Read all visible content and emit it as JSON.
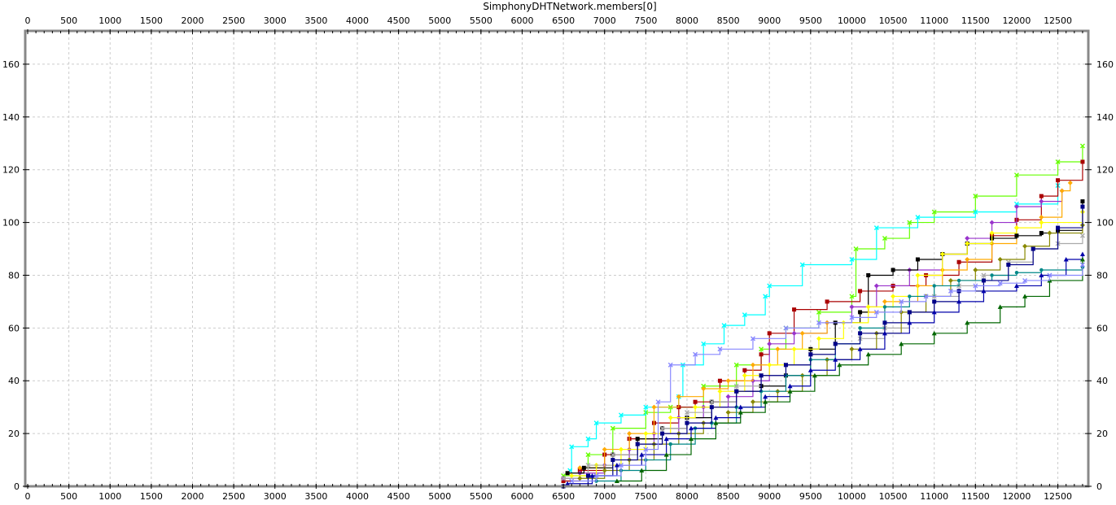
{
  "chart_data": {
    "type": "line",
    "title": "SimphonyDHTNetwork.members[0]",
    "xlabel": "",
    "ylabel": "",
    "xlim": [
      0,
      12850
    ],
    "ylim": [
      0,
      172
    ],
    "x_ticks": [
      0,
      500,
      1000,
      1500,
      2000,
      2500,
      3000,
      3500,
      4000,
      4500,
      5000,
      5500,
      6000,
      6500,
      7000,
      7500,
      8000,
      8500,
      9000,
      9500,
      10000,
      10500,
      11000,
      11500,
      12000,
      12500
    ],
    "y_ticks": [
      0,
      20,
      40,
      60,
      80,
      100,
      120,
      140,
      160
    ],
    "grid": true,
    "legend": "none",
    "series": [
      {
        "color": "#66ff00",
        "marker": "x",
        "points": [
          [
            6500,
            4
          ],
          [
            6800,
            12
          ],
          [
            7100,
            22
          ],
          [
            7500,
            28
          ],
          [
            7800,
            30
          ],
          [
            8200,
            38
          ],
          [
            8600,
            46
          ],
          [
            8900,
            52
          ],
          [
            9200,
            60
          ],
          [
            9600,
            66
          ],
          [
            10000,
            72
          ],
          [
            10050,
            90
          ],
          [
            10400,
            94
          ],
          [
            10700,
            100
          ],
          [
            11000,
            104
          ],
          [
            11500,
            110
          ],
          [
            12000,
            118
          ],
          [
            12500,
            123
          ],
          [
            12800,
            129
          ]
        ]
      },
      {
        "color": "#00ffff",
        "marker": "x",
        "points": [
          [
            6580,
            6
          ],
          [
            6600,
            15
          ],
          [
            6800,
            18
          ],
          [
            6900,
            24
          ],
          [
            7200,
            27
          ],
          [
            7500,
            30
          ],
          [
            7900,
            34
          ],
          [
            7950,
            46
          ],
          [
            8200,
            54
          ],
          [
            8450,
            61
          ],
          [
            8700,
            65
          ],
          [
            8950,
            72
          ],
          [
            9000,
            76
          ],
          [
            9400,
            84
          ],
          [
            10000,
            86
          ],
          [
            10300,
            98
          ],
          [
            10800,
            102
          ],
          [
            11500,
            104
          ],
          [
            12000,
            107
          ],
          [
            12500,
            114
          ]
        ]
      },
      {
        "color": "#aa0000",
        "marker": "s",
        "points": [
          [
            6500,
            2
          ],
          [
            6700,
            6
          ],
          [
            7000,
            12
          ],
          [
            7300,
            18
          ],
          [
            7600,
            24
          ],
          [
            7900,
            30
          ],
          [
            8100,
            32
          ],
          [
            8400,
            40
          ],
          [
            8700,
            44
          ],
          [
            8900,
            50
          ],
          [
            9000,
            58
          ],
          [
            9300,
            67
          ],
          [
            9700,
            70
          ],
          [
            10100,
            74
          ],
          [
            10500,
            76
          ],
          [
            10900,
            80
          ],
          [
            11300,
            85
          ],
          [
            11700,
            95
          ],
          [
            12000,
            101
          ],
          [
            12300,
            110
          ],
          [
            12500,
            116
          ],
          [
            12800,
            123
          ]
        ]
      },
      {
        "color": "#9933cc",
        "marker": "D",
        "points": [
          [
            6500,
            3
          ],
          [
            6700,
            5
          ],
          [
            7000,
            8
          ],
          [
            7300,
            14
          ],
          [
            7600,
            20
          ],
          [
            7900,
            26
          ],
          [
            8200,
            30
          ],
          [
            8500,
            34
          ],
          [
            8800,
            40
          ],
          [
            9000,
            54
          ],
          [
            9300,
            58
          ],
          [
            9700,
            62
          ],
          [
            10000,
            68
          ],
          [
            10300,
            76
          ],
          [
            10700,
            82
          ],
          [
            11100,
            88
          ],
          [
            11400,
            94
          ],
          [
            11700,
            100
          ],
          [
            12000,
            106
          ],
          [
            12300,
            108
          ],
          [
            12550,
            112
          ]
        ]
      },
      {
        "color": "#ffaa00",
        "marker": "D",
        "points": [
          [
            6700,
            7
          ],
          [
            7000,
            14
          ],
          [
            7300,
            20
          ],
          [
            7600,
            30
          ],
          [
            7900,
            34
          ],
          [
            8200,
            37
          ],
          [
            8500,
            40
          ],
          [
            8800,
            46
          ],
          [
            9100,
            52
          ],
          [
            9400,
            58
          ],
          [
            9700,
            62
          ],
          [
            10100,
            66
          ],
          [
            10400,
            70
          ],
          [
            10800,
            76
          ],
          [
            11100,
            82
          ],
          [
            11400,
            86
          ],
          [
            11700,
            92
          ],
          [
            12000,
            98
          ],
          [
            12300,
            102
          ],
          [
            12550,
            112
          ],
          [
            12650,
            115
          ]
        ]
      },
      {
        "color": "#000000",
        "marker": "s",
        "points": [
          [
            6550,
            5
          ],
          [
            6750,
            7
          ],
          [
            7100,
            12
          ],
          [
            7400,
            18
          ],
          [
            7700,
            22
          ],
          [
            8000,
            26
          ],
          [
            8300,
            32
          ],
          [
            8600,
            36
          ],
          [
            8900,
            38
          ],
          [
            9200,
            42
          ],
          [
            9500,
            52
          ],
          [
            9800,
            62
          ],
          [
            10100,
            66
          ],
          [
            10200,
            80
          ],
          [
            10500,
            82
          ],
          [
            10800,
            86
          ],
          [
            11100,
            88
          ],
          [
            11400,
            92
          ],
          [
            11700,
            94
          ],
          [
            12000,
            95
          ],
          [
            12300,
            96
          ],
          [
            12500,
            97
          ],
          [
            12800,
            108
          ]
        ]
      },
      {
        "color": "#ffff00",
        "marker": "D",
        "points": [
          [
            6600,
            4
          ],
          [
            6900,
            8
          ],
          [
            7200,
            14
          ],
          [
            7500,
            20
          ],
          [
            7800,
            26
          ],
          [
            8100,
            30
          ],
          [
            8400,
            36
          ],
          [
            8700,
            42
          ],
          [
            9000,
            46
          ],
          [
            9300,
            52
          ],
          [
            9600,
            56
          ],
          [
            9900,
            62
          ],
          [
            10200,
            68
          ],
          [
            10500,
            72
          ],
          [
            10800,
            80
          ],
          [
            11100,
            88
          ],
          [
            11400,
            92
          ],
          [
            11700,
            96
          ],
          [
            12000,
            98
          ],
          [
            12300,
            100
          ],
          [
            12800,
            104
          ]
        ]
      },
      {
        "color": "#aaaaaa",
        "marker": "x",
        "points": [
          [
            6500,
            3
          ],
          [
            6800,
            8
          ],
          [
            7100,
            12
          ],
          [
            7400,
            16
          ],
          [
            7700,
            22
          ],
          [
            8000,
            28
          ],
          [
            8300,
            32
          ],
          [
            8600,
            38
          ],
          [
            8900,
            42
          ],
          [
            9200,
            46
          ],
          [
            9500,
            50
          ],
          [
            9800,
            54
          ],
          [
            10100,
            56
          ],
          [
            10400,
            60
          ],
          [
            10700,
            66
          ],
          [
            11000,
            72
          ],
          [
            11300,
            76
          ],
          [
            11600,
            80
          ],
          [
            11900,
            85
          ],
          [
            12200,
            90
          ],
          [
            12500,
            92
          ],
          [
            12800,
            95
          ]
        ]
      },
      {
        "color": "#888800",
        "marker": "D",
        "points": [
          [
            6700,
            3
          ],
          [
            7000,
            6
          ],
          [
            7300,
            10
          ],
          [
            7600,
            16
          ],
          [
            7900,
            20
          ],
          [
            8200,
            24
          ],
          [
            8500,
            28
          ],
          [
            8800,
            32
          ],
          [
            9100,
            36
          ],
          [
            9400,
            42
          ],
          [
            9700,
            48
          ],
          [
            10000,
            52
          ],
          [
            10300,
            58
          ],
          [
            10600,
            66
          ],
          [
            10900,
            72
          ],
          [
            11200,
            78
          ],
          [
            11500,
            82
          ],
          [
            11800,
            86
          ],
          [
            12100,
            91
          ],
          [
            12400,
            96
          ],
          [
            12800,
            99
          ]
        ]
      },
      {
        "color": "#008888",
        "marker": "o",
        "points": [
          [
            6900,
            2
          ],
          [
            7200,
            6
          ],
          [
            7500,
            10
          ],
          [
            7800,
            16
          ],
          [
            8100,
            22
          ],
          [
            8300,
            24
          ],
          [
            8600,
            30
          ],
          [
            8900,
            36
          ],
          [
            9200,
            42
          ],
          [
            9500,
            48
          ],
          [
            9800,
            54
          ],
          [
            10100,
            60
          ],
          [
            10400,
            68
          ],
          [
            10700,
            72
          ],
          [
            11000,
            76
          ],
          [
            11300,
            78
          ],
          [
            11700,
            80
          ],
          [
            12000,
            81
          ],
          [
            12300,
            82
          ],
          [
            12800,
            83
          ]
        ]
      },
      {
        "color": "#000088",
        "marker": "s",
        "points": [
          [
            6500,
            0
          ],
          [
            6800,
            4
          ],
          [
            7100,
            10
          ],
          [
            7400,
            16
          ],
          [
            7700,
            20
          ],
          [
            8000,
            24
          ],
          [
            8300,
            30
          ],
          [
            8600,
            36
          ],
          [
            8900,
            42
          ],
          [
            9200,
            46
          ],
          [
            9500,
            50
          ],
          [
            9800,
            54
          ],
          [
            10100,
            58
          ],
          [
            10400,
            62
          ],
          [
            10700,
            66
          ],
          [
            11000,
            70
          ],
          [
            11300,
            74
          ],
          [
            11600,
            78
          ],
          [
            11900,
            84
          ],
          [
            12200,
            90
          ],
          [
            12500,
            98
          ],
          [
            12800,
            106
          ]
        ]
      },
      {
        "color": "#0000aa",
        "marker": "^",
        "points": [
          [
            6550,
            1
          ],
          [
            6850,
            4
          ],
          [
            7150,
            8
          ],
          [
            7450,
            12
          ],
          [
            7750,
            18
          ],
          [
            8050,
            22
          ],
          [
            8350,
            26
          ],
          [
            8650,
            30
          ],
          [
            8950,
            34
          ],
          [
            9250,
            38
          ],
          [
            9500,
            44
          ],
          [
            9800,
            48
          ],
          [
            10100,
            52
          ],
          [
            10400,
            58
          ],
          [
            10700,
            62
          ],
          [
            11000,
            66
          ],
          [
            11300,
            70
          ],
          [
            11600,
            74
          ],
          [
            12000,
            76
          ],
          [
            12300,
            80
          ],
          [
            12600,
            86
          ],
          [
            12800,
            88
          ]
        ]
      },
      {
        "color": "#006600",
        "marker": "^",
        "points": [
          [
            7150,
            2
          ],
          [
            7450,
            6
          ],
          [
            7750,
            12
          ],
          [
            8050,
            18
          ],
          [
            8350,
            24
          ],
          [
            8650,
            28
          ],
          [
            8950,
            32
          ],
          [
            9250,
            36
          ],
          [
            9550,
            42
          ],
          [
            9850,
            46
          ],
          [
            10200,
            50
          ],
          [
            10600,
            54
          ],
          [
            11000,
            58
          ],
          [
            11400,
            62
          ],
          [
            11800,
            68
          ],
          [
            12100,
            72
          ],
          [
            12400,
            78
          ],
          [
            12800,
            86
          ]
        ]
      },
      {
        "color": "#8888ff",
        "marker": "x",
        "points": [
          [
            6600,
            2
          ],
          [
            6900,
            4
          ],
          [
            7200,
            8
          ],
          [
            7500,
            14
          ],
          [
            7650,
            32
          ],
          [
            7800,
            46
          ],
          [
            8100,
            50
          ],
          [
            8400,
            52
          ],
          [
            8800,
            56
          ],
          [
            9200,
            60
          ],
          [
            9600,
            62
          ],
          [
            10000,
            64
          ],
          [
            10300,
            66
          ],
          [
            10600,
            70
          ],
          [
            10900,
            72
          ],
          [
            11200,
            74
          ],
          [
            11500,
            76
          ],
          [
            11800,
            77
          ],
          [
            12100,
            78
          ],
          [
            12400,
            80
          ],
          [
            12800,
            84
          ]
        ]
      }
    ]
  }
}
